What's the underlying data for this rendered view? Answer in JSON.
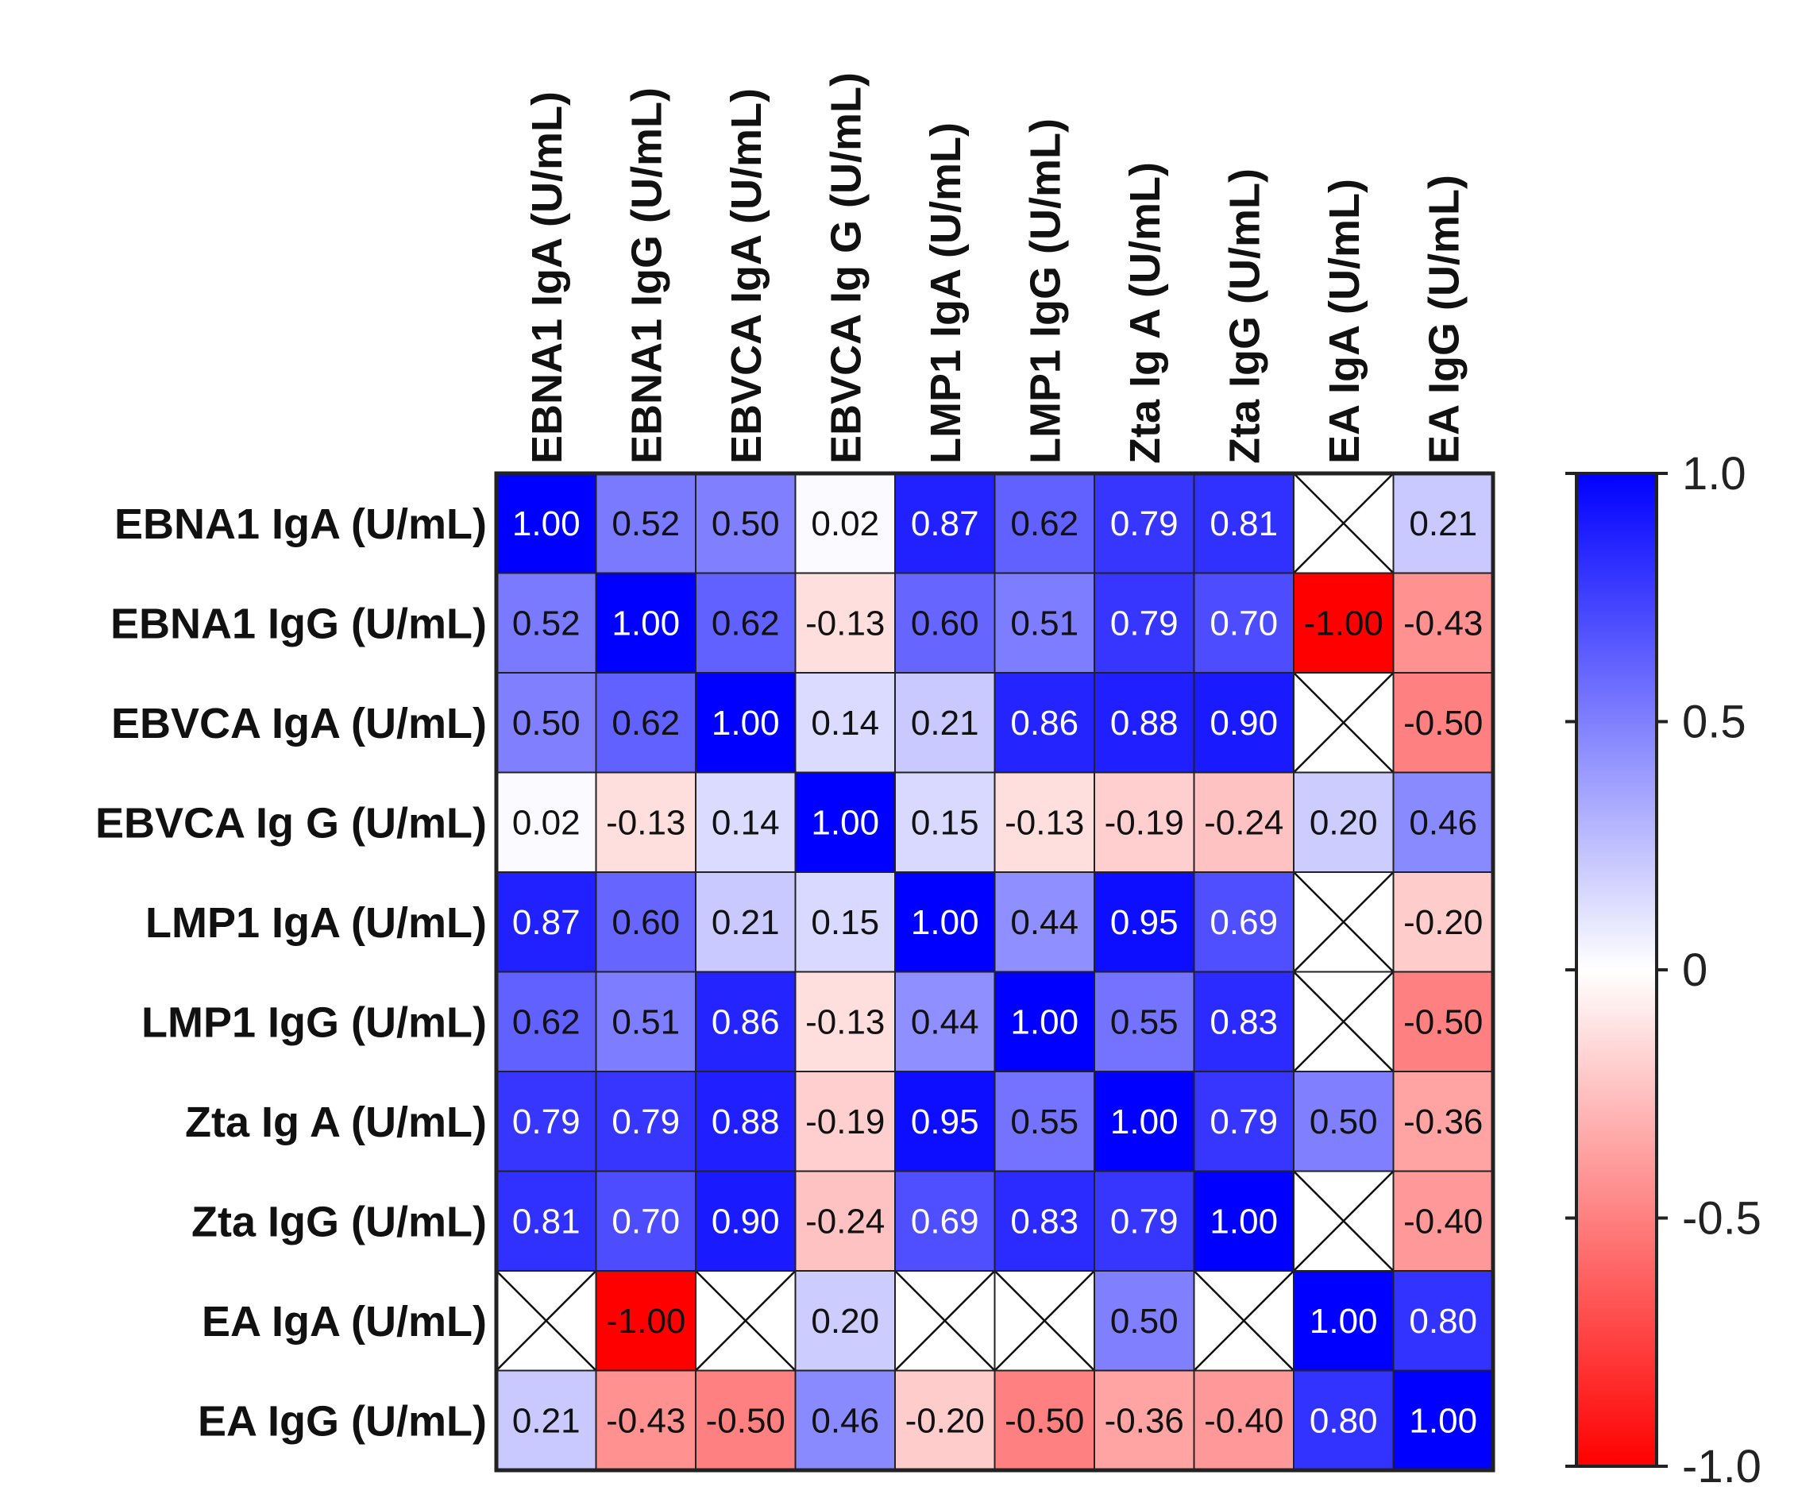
{
  "chart_data": {
    "type": "heatmap",
    "title": "",
    "row_labels": [
      "EBNA1 IgA (U/mL)",
      "EBNA1 IgG (U/mL)",
      "EBVCA IgA (U/mL)",
      "EBVCA Ig G (U/mL)",
      "LMP1 IgA (U/mL)",
      "LMP1 IgG (U/mL)",
      "Zta Ig A (U/mL)",
      "Zta IgG (U/mL)",
      "EA IgA (U/mL)",
      "EA IgG (U/mL)"
    ],
    "column_labels": [
      "EBNA1 IgA (U/mL)",
      "EBNA1 IgG (U/mL)",
      "EBVCA IgA (U/mL)",
      "EBVCA Ig G (U/mL)",
      "LMP1 IgA (U/mL)",
      "LMP1 IgG (U/mL)",
      "Zta Ig A (U/mL)",
      "Zta IgG (U/mL)",
      "EA IgA (U/mL)",
      "EA IgG (U/mL)"
    ],
    "values": [
      [
        1.0,
        0.52,
        0.5,
        0.02,
        0.87,
        0.62,
        0.79,
        0.81,
        null,
        0.21
      ],
      [
        0.52,
        1.0,
        0.62,
        -0.13,
        0.6,
        0.51,
        0.79,
        0.7,
        -1.0,
        -0.43
      ],
      [
        0.5,
        0.62,
        1.0,
        0.14,
        0.21,
        0.86,
        0.88,
        0.9,
        null,
        -0.5
      ],
      [
        0.02,
        -0.13,
        0.14,
        1.0,
        0.15,
        -0.13,
        -0.19,
        -0.24,
        0.2,
        0.46
      ],
      [
        0.87,
        0.6,
        0.21,
        0.15,
        1.0,
        0.44,
        0.95,
        0.69,
        null,
        -0.2
      ],
      [
        0.62,
        0.51,
        0.86,
        -0.13,
        0.44,
        1.0,
        0.55,
        0.83,
        null,
        -0.5
      ],
      [
        0.79,
        0.79,
        0.88,
        -0.19,
        0.95,
        0.55,
        1.0,
        0.79,
        0.5,
        -0.36
      ],
      [
        0.81,
        0.7,
        0.9,
        -0.24,
        0.69,
        0.83,
        0.79,
        1.0,
        null,
        -0.4
      ],
      [
        null,
        -1.0,
        null,
        0.2,
        null,
        null,
        0.5,
        null,
        1.0,
        0.8
      ],
      [
        0.21,
        -0.43,
        -0.5,
        0.46,
        -0.2,
        -0.5,
        -0.36,
        -0.4,
        0.8,
        1.0
      ]
    ],
    "colorbar": {
      "range": [
        -1.0,
        1.0
      ],
      "ticks": [
        1.0,
        0.5,
        0,
        -0.5,
        -1.0
      ],
      "tick_labels": [
        "1.0",
        "0.5",
        "0",
        "-0.5",
        "-1.0"
      ],
      "colors": {
        "min": "#ff0000",
        "mid": "#ffffff",
        "max": "#0000ff"
      }
    },
    "missing_cell_marker": "X"
  }
}
